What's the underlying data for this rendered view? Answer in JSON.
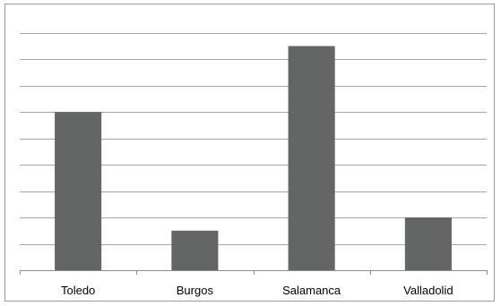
{
  "chart_data": {
    "type": "bar",
    "title": "",
    "xlabel": "",
    "ylabel": "",
    "categories": [
      "Toledo",
      "Burgos",
      "Salamanca",
      "Valladolid"
    ],
    "values": [
      6,
      1.5,
      8.5,
      2
    ],
    "ylim": [
      0,
      9.5
    ],
    "grid": true,
    "y_tick_step": 1,
    "y_tick_labels_visible": false,
    "legend": "none",
    "bar_color": "#646665",
    "grid_color": "#a6a6a6",
    "axis_color": "#8c8c8c"
  }
}
